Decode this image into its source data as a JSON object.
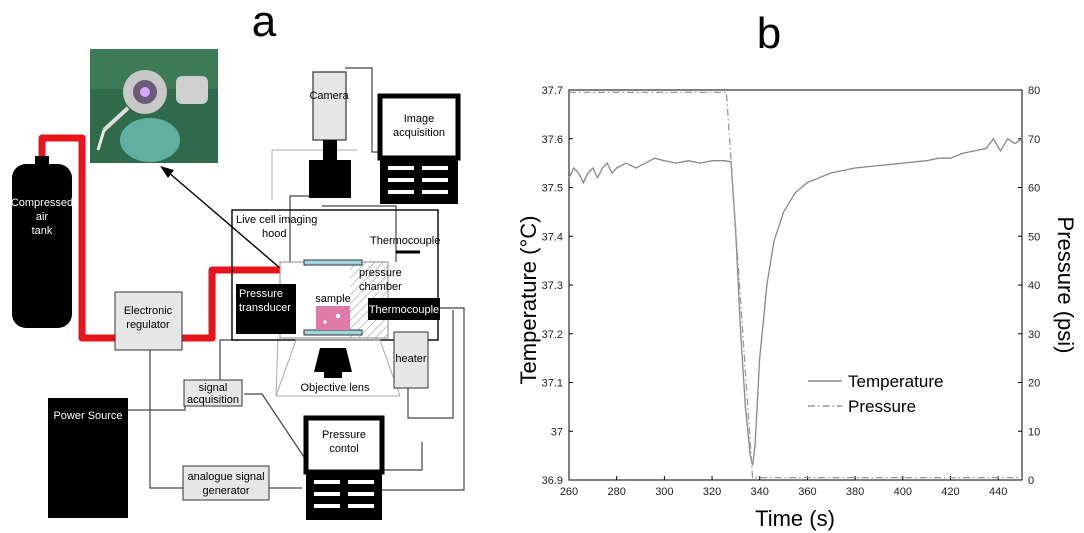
{
  "panel_a": {
    "letter": "a",
    "labels": {
      "camera": "Camera",
      "image_acquisition": [
        "Image",
        "acquisition"
      ],
      "compressed_air_tank": [
        "Compressed",
        "air",
        "tank"
      ],
      "live_cell_imaging_hood": [
        "Live cell imaging",
        "hood"
      ],
      "thermocouple_top": "Thermocouple",
      "pressure_chamber": [
        "pressure",
        "chamber"
      ],
      "pressure_transducer": [
        "Pressure",
        "transducer"
      ],
      "sample": "sample",
      "thermocouple_bottom": "Thermocouple",
      "electronic_regulator": [
        "Electronic",
        "regulator"
      ],
      "heater": "heater",
      "objective_lens": "Objective lens",
      "signal_acquisition": [
        "signal",
        "acquisition"
      ],
      "power_source": "Power Source",
      "pressure_control": [
        "Pressure",
        "contol"
      ],
      "analogue_signal_generator": [
        "analogue signal",
        "generator"
      ]
    },
    "colors": {
      "air_line": "#e8141b",
      "sample": "#e07aa8",
      "window": "#9fd6e2"
    }
  },
  "panel_b": {
    "letter": "b",
    "chart_data": {
      "type": "line",
      "xlabel": "Time (s)",
      "ylabel": "Temperature (°C)",
      "ylabel_right": "Pressure (psi)",
      "xlim": [
        260,
        450
      ],
      "ylim": [
        36.9,
        37.7
      ],
      "ylim_right": [
        0,
        80
      ],
      "x_ticks": [
        "260",
        "280",
        "300",
        "320",
        "340",
        "360",
        "380",
        "400",
        "420",
        "440"
      ],
      "y_ticks": [
        "36.9",
        "37",
        "37.1",
        "37.2",
        "37.3",
        "37.4",
        "37.5",
        "37.6",
        "37.7"
      ],
      "y_ticks_right": [
        "0",
        "10",
        "20",
        "30",
        "40",
        "50",
        "60",
        "70",
        "80"
      ],
      "legend_position": "right-center",
      "series": [
        {
          "name": "Temperature",
          "axis": "left",
          "style": "solid",
          "color": "#888888",
          "x": [
            260,
            262,
            264,
            266,
            268,
            270,
            272,
            274,
            276,
            278,
            280,
            284,
            288,
            292,
            296,
            300,
            305,
            310,
            315,
            320,
            325,
            328,
            330,
            332,
            334,
            336,
            337,
            338,
            340,
            343,
            346,
            350,
            355,
            360,
            365,
            370,
            380,
            390,
            400,
            410,
            415,
            420,
            425,
            430,
            435,
            438,
            441,
            444,
            447,
            450
          ],
          "values": [
            37.52,
            37.54,
            37.53,
            37.51,
            37.53,
            37.54,
            37.52,
            37.54,
            37.55,
            37.53,
            37.54,
            37.55,
            37.54,
            37.55,
            37.56,
            37.555,
            37.55,
            37.555,
            37.55,
            37.555,
            37.555,
            37.553,
            37.4,
            37.2,
            37.05,
            36.95,
            36.93,
            36.97,
            37.15,
            37.3,
            37.39,
            37.45,
            37.49,
            37.51,
            37.52,
            37.53,
            37.54,
            37.545,
            37.55,
            37.555,
            37.56,
            37.56,
            37.57,
            37.575,
            37.58,
            37.6,
            37.575,
            37.6,
            37.59,
            37.6
          ]
        },
        {
          "name": "Pressure",
          "axis": "right",
          "style": "dash-dot",
          "color": "#999999",
          "x": [
            260,
            326,
            337,
            350,
            450
          ],
          "values": [
            79.5,
            79.5,
            0.5,
            0.5,
            0.5
          ]
        }
      ]
    }
  }
}
